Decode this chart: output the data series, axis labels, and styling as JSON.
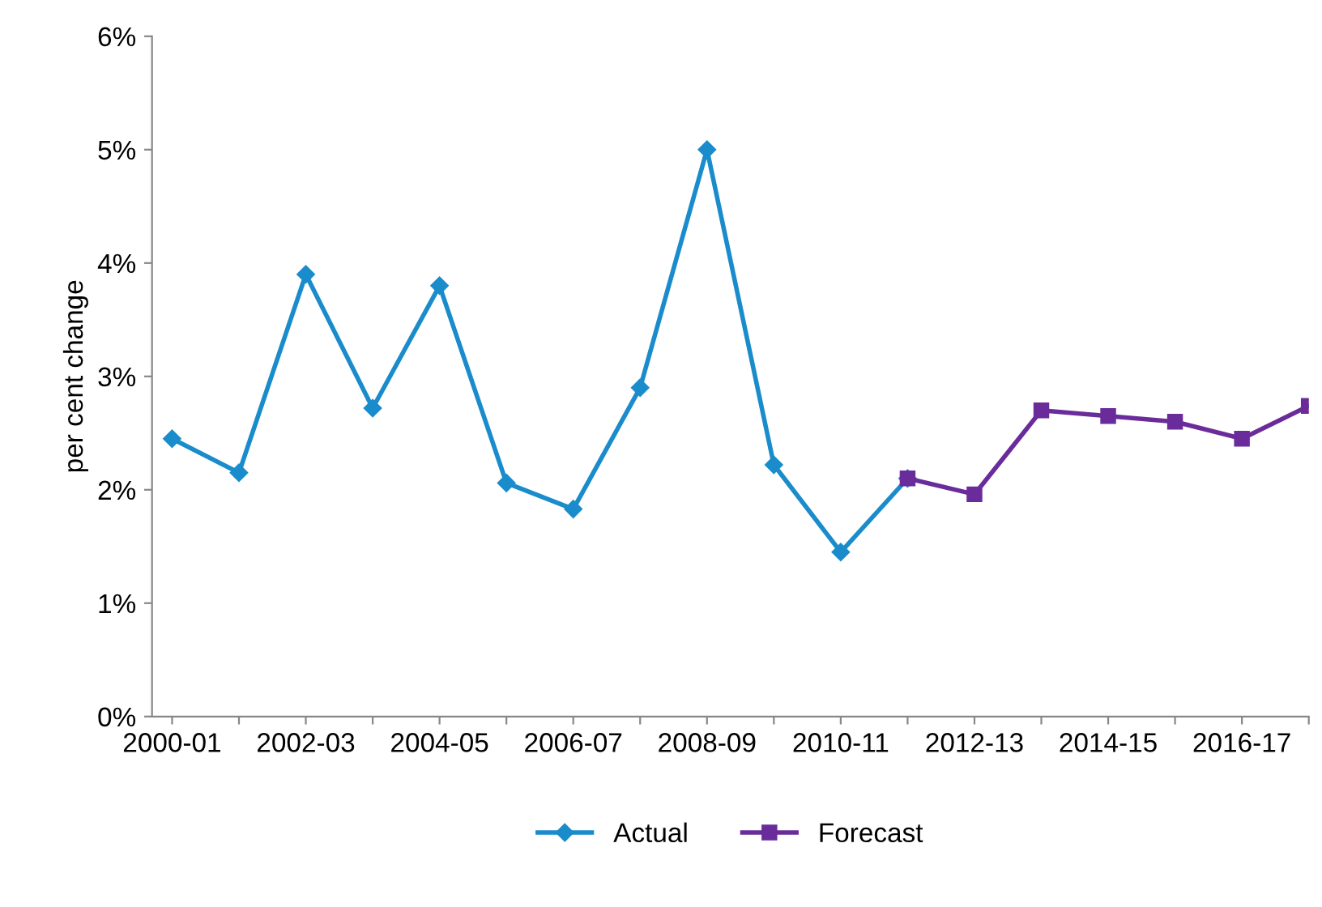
{
  "chart_data": {
    "type": "line",
    "ylabel": "per cent change",
    "categories": [
      "2000-01",
      null,
      "2002-03",
      null,
      "2004-05",
      null,
      "2006-07",
      null,
      "2008-09",
      null,
      "2010-11",
      null,
      "2012-13",
      null,
      "2014-15",
      null,
      "2016-17",
      null
    ],
    "series": [
      {
        "name": "Actual",
        "color": "#1a8ccc",
        "marker": "diamond",
        "values": [
          2.45,
          2.15,
          3.9,
          2.72,
          3.8,
          2.06,
          1.83,
          2.9,
          5.0,
          2.22,
          1.45,
          2.1,
          null,
          null,
          null,
          null,
          null,
          null
        ]
      },
      {
        "name": "Forecast",
        "color": "#6a2c9a",
        "marker": "square",
        "values": [
          null,
          null,
          null,
          null,
          null,
          null,
          null,
          null,
          null,
          null,
          null,
          2.1,
          1.96,
          2.7,
          2.65,
          2.6,
          2.45,
          2.74
        ]
      }
    ],
    "ylim": [
      0,
      6
    ],
    "yticks": [
      {
        "value": 0,
        "label": "0%"
      },
      {
        "value": 1,
        "label": "1%"
      },
      {
        "value": 2,
        "label": "2%"
      },
      {
        "value": 3,
        "label": "3%"
      },
      {
        "value": 4,
        "label": "4%"
      },
      {
        "value": 5,
        "label": "5%"
      },
      {
        "value": 6,
        "label": "6%"
      }
    ],
    "grid": false,
    "legend": "bottom",
    "line_style": "solid"
  }
}
